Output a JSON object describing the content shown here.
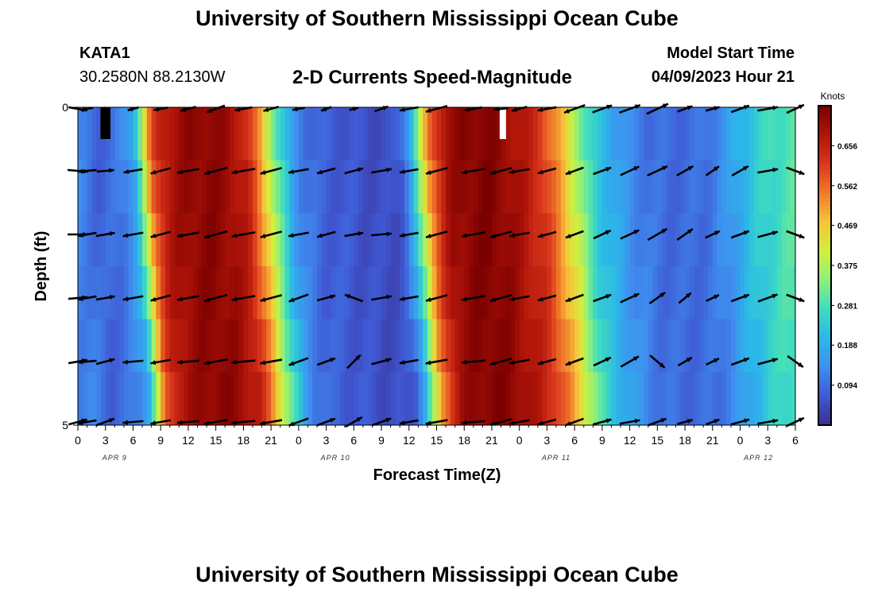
{
  "header": {
    "title": "University of Southern Mississippi Ocean Cube",
    "station": "KATA1",
    "coordinates": "30.2580N  88.2130W",
    "subtitle": "2-D Currents Speed-Magnitude",
    "model_start_label": "Model Start Time",
    "model_start_value": "04/09/2023 Hour 21"
  },
  "footer": {
    "title": "University of Southern Mississippi Ocean Cube"
  },
  "colors": {
    "scale": [
      "#3a2f8f",
      "#3f59d4",
      "#3f8ff0",
      "#2bb8e8",
      "#3fdcc0",
      "#8ef07a",
      "#d2ef3c",
      "#f7c43a",
      "#f07a2a",
      "#d9371c",
      "#b01509",
      "#7a0000"
    ],
    "arrow": "#000000",
    "highlight_white": "#ffffff",
    "highlight_black": "#000000"
  },
  "chart_data": {
    "type": "heatmap",
    "title": "2-D Currents Speed-Magnitude",
    "xlabel": "Forecast Time(Z)",
    "ylabel": "Depth (ft)",
    "x_ticks": [
      "0",
      "3",
      "6",
      "9",
      "12",
      "15",
      "18",
      "21",
      "0",
      "3",
      "6",
      "9",
      "12",
      "15",
      "18",
      "21",
      "0",
      "3",
      "6",
      "9",
      "12",
      "15",
      "18",
      "21",
      "0",
      "3",
      "6"
    ],
    "y_ticks": [
      "0",
      "5"
    ],
    "ylim": [
      0,
      5
    ],
    "date_labels": [
      {
        "label": "APR 9",
        "hour": 4
      },
      {
        "label": "APR 10",
        "hour": 28
      },
      {
        "label": "APR 11",
        "hour": 52
      },
      {
        "label": "APR 12",
        "hour": 74
      }
    ],
    "hours_range": [
      0,
      78
    ],
    "depths": [
      0,
      1,
      2,
      3,
      4,
      5
    ],
    "colorbar": {
      "title": "Knots",
      "range": [
        0.0,
        0.75
      ],
      "ticks": [
        "0.094",
        "0.188",
        "0.281",
        "0.375",
        "0.469",
        "0.562",
        "0.656"
      ]
    },
    "speed_profile": {
      "hours": [
        0,
        1,
        2,
        3,
        4,
        5,
        6,
        6.5,
        7,
        7.5,
        8,
        9,
        10,
        12,
        14,
        16,
        18,
        19,
        20,
        21,
        22,
        23,
        24,
        26,
        28,
        30,
        32,
        34,
        35,
        36,
        37,
        38,
        39,
        40,
        42,
        44,
        46,
        48,
        50,
        51,
        52,
        53,
        54,
        55,
        56,
        58,
        60,
        62,
        64,
        66,
        68,
        70,
        72,
        74,
        76,
        78
      ],
      "speeds": [
        0.12,
        0.1,
        0.08,
        0.09,
        0.1,
        0.13,
        0.19,
        0.28,
        0.38,
        0.5,
        0.58,
        0.66,
        0.69,
        0.72,
        0.73,
        0.71,
        0.66,
        0.58,
        0.48,
        0.36,
        0.26,
        0.17,
        0.12,
        0.08,
        0.07,
        0.06,
        0.05,
        0.05,
        0.08,
        0.18,
        0.35,
        0.53,
        0.63,
        0.7,
        0.73,
        0.74,
        0.72,
        0.68,
        0.63,
        0.58,
        0.52,
        0.45,
        0.38,
        0.3,
        0.24,
        0.18,
        0.13,
        0.1,
        0.09,
        0.09,
        0.1,
        0.14,
        0.2,
        0.25,
        0.28,
        0.3
      ]
    },
    "shift_per_depth": [
      0,
      0.3,
      0.6,
      0.9,
      1.3,
      1.7
    ],
    "black_patches": [
      {
        "hour": 2.8,
        "depth": 0
      },
      {
        "hour": 3.2,
        "depth": 0
      }
    ],
    "white_patch": {
      "hour": 46.2,
      "depth": 0
    },
    "arrow_hours": [
      0,
      1,
      3,
      6,
      9,
      12,
      15,
      18,
      21,
      24,
      27,
      30,
      33,
      36,
      39,
      43,
      46,
      48,
      51,
      54,
      57,
      60,
      63,
      66,
      69,
      72,
      75,
      78
    ],
    "arrows": {
      "d0": [
        [
          0.12,
          -10
        ],
        [
          0.08,
          190
        ],
        [
          0.05,
          0
        ],
        [
          0.07,
          195
        ],
        [
          0.09,
          190
        ],
        [
          0.1,
          195
        ],
        [
          0.12,
          200
        ],
        [
          0.11,
          190
        ],
        [
          0.1,
          195
        ],
        [
          0.08,
          190
        ],
        [
          0.07,
          200
        ],
        [
          0.06,
          15
        ],
        [
          0.09,
          20
        ],
        [
          0.12,
          190
        ],
        [
          0.14,
          195
        ],
        [
          0.11,
          190
        ],
        [
          0.09,
          185
        ],
        [
          0.1,
          195
        ],
        [
          0.12,
          190
        ],
        [
          0.14,
          200
        ],
        [
          0.13,
          20
        ],
        [
          0.14,
          20
        ],
        [
          0.15,
          25
        ],
        [
          0.1,
          20
        ],
        [
          0.09,
          15
        ],
        [
          0.12,
          20
        ],
        [
          0.13,
          10
        ],
        [
          0.12,
          25
        ]
      ],
      "d1": [
        [
          0.13,
          -5
        ],
        [
          0.12,
          185
        ],
        [
          0.11,
          5
        ],
        [
          0.12,
          190
        ],
        [
          0.13,
          195
        ],
        [
          0.14,
          190
        ],
        [
          0.15,
          195
        ],
        [
          0.15,
          190
        ],
        [
          0.14,
          195
        ],
        [
          0.13,
          190
        ],
        [
          0.12,
          195
        ],
        [
          0.12,
          15
        ],
        [
          0.13,
          10
        ],
        [
          0.12,
          190
        ],
        [
          0.14,
          195
        ],
        [
          0.15,
          190
        ],
        [
          0.14,
          195
        ],
        [
          0.13,
          190
        ],
        [
          0.12,
          195
        ],
        [
          0.12,
          200
        ],
        [
          0.12,
          20
        ],
        [
          0.13,
          25
        ],
        [
          0.14,
          25
        ],
        [
          0.12,
          30
        ],
        [
          0.1,
          35
        ],
        [
          0.12,
          30
        ],
        [
          0.13,
          10
        ],
        [
          0.12,
          -20
        ]
      ],
      "d2": [
        [
          0.13,
          0
        ],
        [
          0.12,
          190
        ],
        [
          0.12,
          10
        ],
        [
          0.13,
          190
        ],
        [
          0.13,
          195
        ],
        [
          0.14,
          190
        ],
        [
          0.15,
          195
        ],
        [
          0.15,
          190
        ],
        [
          0.14,
          195
        ],
        [
          0.13,
          190
        ],
        [
          0.12,
          195
        ],
        [
          0.12,
          10
        ],
        [
          0.13,
          5
        ],
        [
          0.12,
          190
        ],
        [
          0.14,
          195
        ],
        [
          0.15,
          190
        ],
        [
          0.14,
          195
        ],
        [
          0.13,
          190
        ],
        [
          0.12,
          195
        ],
        [
          0.12,
          200
        ],
        [
          0.12,
          25
        ],
        [
          0.13,
          25
        ],
        [
          0.14,
          30
        ],
        [
          0.12,
          35
        ],
        [
          0.1,
          25
        ],
        [
          0.12,
          20
        ],
        [
          0.13,
          15
        ],
        [
          0.12,
          -20
        ]
      ],
      "d3": [
        [
          0.12,
          5
        ],
        [
          0.12,
          190
        ],
        [
          0.12,
          10
        ],
        [
          0.13,
          190
        ],
        [
          0.13,
          195
        ],
        [
          0.14,
          190
        ],
        [
          0.15,
          195
        ],
        [
          0.15,
          190
        ],
        [
          0.14,
          195
        ],
        [
          0.13,
          200
        ],
        [
          0.12,
          15
        ],
        [
          0.12,
          160
        ],
        [
          0.13,
          10
        ],
        [
          0.12,
          190
        ],
        [
          0.14,
          195
        ],
        [
          0.15,
          190
        ],
        [
          0.14,
          195
        ],
        [
          0.13,
          190
        ],
        [
          0.12,
          195
        ],
        [
          0.12,
          200
        ],
        [
          0.12,
          20
        ],
        [
          0.13,
          25
        ],
        [
          0.12,
          35
        ],
        [
          0.1,
          40
        ],
        [
          0.09,
          25
        ],
        [
          0.12,
          20
        ],
        [
          0.13,
          20
        ],
        [
          0.12,
          -20
        ]
      ],
      "d4": [
        [
          0.12,
          10
        ],
        [
          0.12,
          185
        ],
        [
          0.12,
          15
        ],
        [
          0.13,
          185
        ],
        [
          0.13,
          190
        ],
        [
          0.14,
          185
        ],
        [
          0.15,
          190
        ],
        [
          0.15,
          185
        ],
        [
          0.14,
          190
        ],
        [
          0.13,
          200
        ],
        [
          0.12,
          20
        ],
        [
          0.12,
          45
        ],
        [
          0.13,
          15
        ],
        [
          0.12,
          190
        ],
        [
          0.14,
          190
        ],
        [
          0.15,
          185
        ],
        [
          0.14,
          195
        ],
        [
          0.13,
          190
        ],
        [
          0.12,
          195
        ],
        [
          0.12,
          200
        ],
        [
          0.12,
          25
        ],
        [
          0.13,
          30
        ],
        [
          0.12,
          -40
        ],
        [
          0.1,
          30
        ],
        [
          0.09,
          25
        ],
        [
          0.12,
          20
        ],
        [
          0.13,
          15
        ],
        [
          0.12,
          -35
        ]
      ],
      "d5": [
        [
          0.12,
          15
        ],
        [
          0.12,
          190
        ],
        [
          0.12,
          20
        ],
        [
          0.13,
          185
        ],
        [
          0.13,
          190
        ],
        [
          0.14,
          185
        ],
        [
          0.15,
          190
        ],
        [
          0.15,
          185
        ],
        [
          0.14,
          190
        ],
        [
          0.13,
          200
        ],
        [
          0.12,
          20
        ],
        [
          0.12,
          30
        ],
        [
          0.13,
          20
        ],
        [
          0.12,
          190
        ],
        [
          0.14,
          190
        ],
        [
          0.15,
          185
        ],
        [
          0.14,
          195
        ],
        [
          0.13,
          190
        ],
        [
          0.12,
          195
        ],
        [
          0.12,
          200
        ],
        [
          0.12,
          15
        ],
        [
          0.13,
          10
        ],
        [
          0.12,
          20
        ],
        [
          0.1,
          15
        ],
        [
          0.09,
          20
        ],
        [
          0.12,
          15
        ],
        [
          0.13,
          10
        ],
        [
          0.12,
          25
        ]
      ]
    }
  }
}
